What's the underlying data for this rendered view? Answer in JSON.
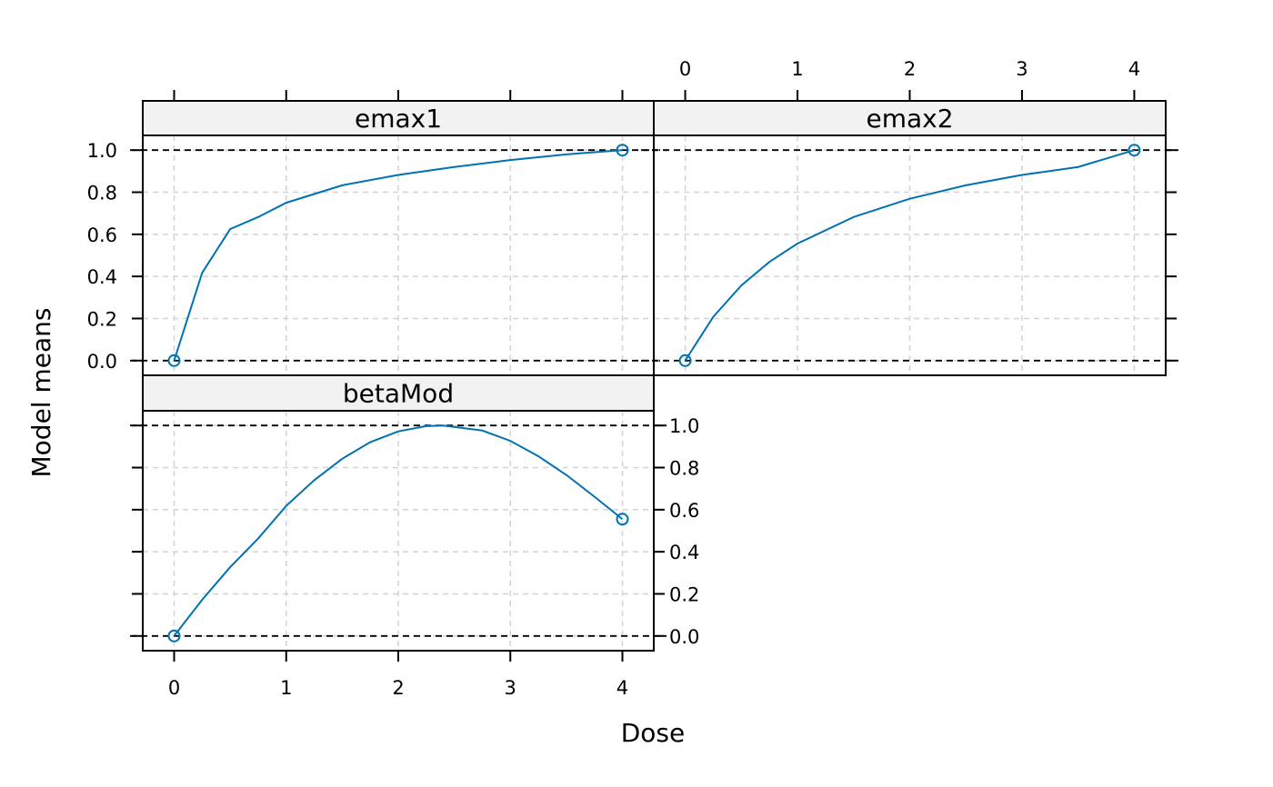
{
  "xlabel": "Dose",
  "ylabel": "Model means",
  "colors": {
    "curve": "#0072B2",
    "strip": "#f2f2f2",
    "grid": "#d3d3d3",
    "refline": "#000000"
  },
  "chart_data": [
    {
      "type": "line",
      "title": "emax1",
      "xlim": [
        -0.28,
        4.28
      ],
      "ylim": [
        -0.07,
        1.07
      ],
      "x_ticks": [
        0,
        1,
        2,
        3,
        4
      ],
      "y_ticks": [
        0.0,
        0.2,
        0.4,
        0.6,
        0.8,
        1.0
      ],
      "x_tick_labels": [],
      "y_tick_labels": [
        "0.0",
        "0.2",
        "0.4",
        "0.6",
        "0.8",
        "1.0"
      ],
      "reference_lines": [
        0,
        1
      ],
      "grid": true,
      "series": [
        {
          "x": [
            0,
            0.25,
            0.5,
            0.75,
            1,
            1.5,
            2,
            2.5,
            3,
            3.5,
            4
          ],
          "y": [
            0,
            0.417,
            0.625,
            0.682,
            0.75,
            0.833,
            0.882,
            0.92,
            0.953,
            0.98,
            1.0
          ]
        }
      ],
      "points": {
        "x": [
          0,
          4
        ],
        "y": [
          0,
          1
        ]
      }
    },
    {
      "type": "line",
      "title": "emax2",
      "xlim": [
        -0.28,
        4.28
      ],
      "ylim": [
        -0.07,
        1.07
      ],
      "x_ticks": [
        0,
        1,
        2,
        3,
        4
      ],
      "y_ticks": [
        0.0,
        0.2,
        0.4,
        0.6,
        0.8,
        1.0
      ],
      "x_tick_labels": [
        "0",
        "1",
        "2",
        "3",
        "4"
      ],
      "y_tick_labels": [],
      "reference_lines": [
        0,
        1
      ],
      "grid": true,
      "series": [
        {
          "x": [
            0,
            0.25,
            0.5,
            0.75,
            1,
            1.5,
            2,
            2.5,
            3,
            3.5,
            4
          ],
          "y": [
            0,
            0.208,
            0.357,
            0.469,
            0.556,
            0.682,
            0.769,
            0.833,
            0.882,
            0.92,
            1.0
          ]
        }
      ],
      "points": {
        "x": [
          0,
          4
        ],
        "y": [
          0,
          1
        ]
      }
    },
    {
      "type": "line",
      "title": "betaMod",
      "xlim": [
        -0.28,
        4.28
      ],
      "ylim": [
        -0.07,
        1.07
      ],
      "x_ticks": [
        0,
        1,
        2,
        3,
        4
      ],
      "y_ticks": [
        0.0,
        0.2,
        0.4,
        0.6,
        0.8,
        1.0
      ],
      "x_tick_labels": [
        "0",
        "1",
        "2",
        "3",
        "4"
      ],
      "y_tick_labels": [
        "0.0",
        "0.2",
        "0.4",
        "0.6",
        "0.8",
        "1.0"
      ],
      "reference_lines": [
        0,
        1
      ],
      "grid": true,
      "series": [
        {
          "x": [
            0,
            0.25,
            0.5,
            0.75,
            1,
            1.25,
            1.5,
            1.75,
            2,
            2.25,
            2.4,
            2.75,
            3,
            3.25,
            3.5,
            3.75,
            4
          ],
          "y": [
            0,
            0.172,
            0.327,
            0.463,
            0.618,
            0.74,
            0.842,
            0.921,
            0.972,
            0.997,
            1.0,
            0.976,
            0.927,
            0.854,
            0.765,
            0.662,
            0.555
          ]
        }
      ],
      "points": {
        "x": [
          0,
          4
        ],
        "y": [
          0,
          0.555
        ]
      }
    }
  ]
}
